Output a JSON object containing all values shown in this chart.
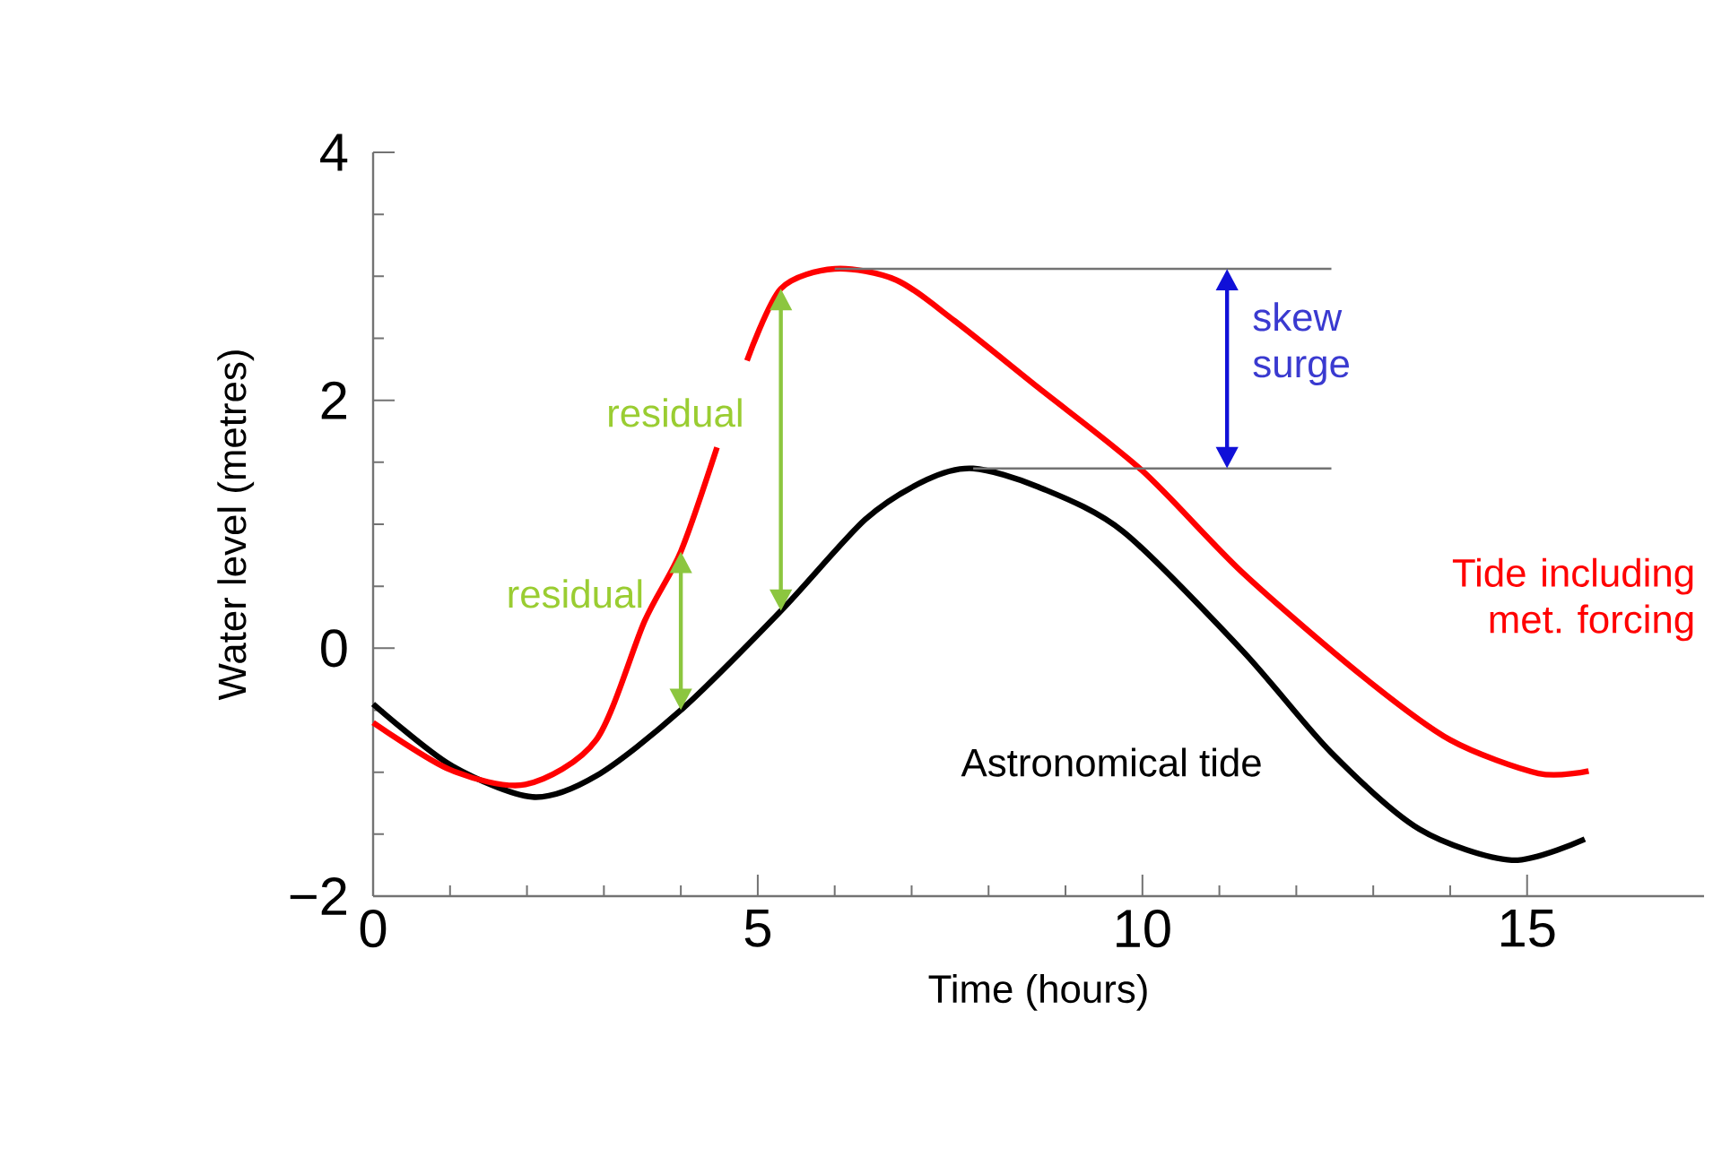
{
  "chart_data": {
    "type": "line",
    "xlabel": "Time (hours)",
    "ylabel": "Water level (metres)",
    "xlim": [
      0,
      17.3
    ],
    "ylim": [
      -2,
      4
    ],
    "xticks": [
      0,
      5,
      10,
      15
    ],
    "yticks": [
      {
        "value": -2,
        "label": "−2"
      },
      0,
      2,
      4
    ],
    "ref_lines": [
      {
        "axis": "y",
        "value": 3.06
      },
      {
        "axis": "y",
        "value": 1.45
      }
    ],
    "series": [
      {
        "name": "Astronomical tide",
        "color": "#000000",
        "x": [
          0,
          1,
          2.07,
          2.9,
          4.0,
          5.3,
          6.4,
          7.2,
          7.8,
          8.65,
          9.75,
          11.3,
          12.45,
          13.6,
          14.8,
          15.75
        ],
        "values": [
          -0.45,
          -0.94,
          -1.2,
          -1.03,
          -0.5,
          0.3,
          1.04,
          1.36,
          1.45,
          1.3,
          0.94,
          -0.02,
          -0.84,
          -1.46,
          -1.71,
          -1.54
        ]
      },
      {
        "name": "Tide including met. forcing",
        "color": "#ff0000",
        "x": [
          0,
          1,
          1.98,
          2.9,
          3.53,
          4.0,
          4.47,
          4.7,
          4.86,
          5.3,
          6.0,
          6.8,
          7.56,
          8.65,
          10,
          11.3,
          12.85,
          14,
          15.15,
          15.8
        ],
        "values": [
          -0.6,
          -0.98,
          -1.1,
          -0.74,
          0.22,
          0.78,
          1.62,
          null,
          2.32,
          2.9,
          3.06,
          2.97,
          2.64,
          2.1,
          1.43,
          0.61,
          -0.22,
          -0.74,
          -1.01,
          -0.99
        ]
      }
    ],
    "annotations": [
      {
        "text": "residual",
        "x": 4.0,
        "y": 0.78
      },
      {
        "text": "residual",
        "x": 5.3,
        "y": 2.9
      },
      {
        "text": "skew surge",
        "x": 11.1,
        "y": 3.06
      }
    ]
  }
}
